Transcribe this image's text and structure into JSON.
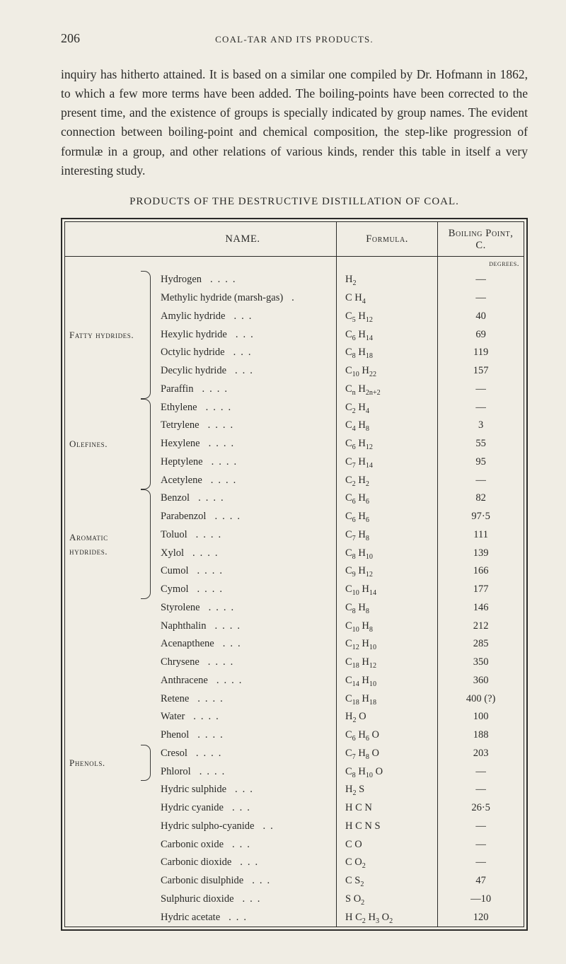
{
  "page_number": "206",
  "running_head": "COAL-TAR AND ITS PRODUCTS.",
  "paragraph": "inquiry has hitherto attained. It is based on a similar one compiled by Dr. Hofmann in 1862, to which a few more terms have been added. The boiling-points have been corrected to the present time, and the existence of groups is specially indicated by group names. The evident connection between boiling-point and chemical composition, the step-like progression of formulæ in a group, and other relations of various kinds, render this table in itself a very interesting study.",
  "table_title": "PRODUCTS OF THE DESTRUCTIVE DISTILLATION OF COAL.",
  "columns": {
    "name": "NAME.",
    "formula": "Formula.",
    "bp": "Boiling Point, C."
  },
  "degrees_label": "degrees.",
  "groups": [
    {
      "category": "Fatty hydrides.",
      "rows": [
        {
          "name": "Hydrogen",
          "dots": "....",
          "formula": "H<sub>2</sub>",
          "bp": "—"
        },
        {
          "name": "Methylic hydride (marsh-gas)",
          "dots": ".",
          "formula": "C H<sub>4</sub>",
          "bp": "—"
        },
        {
          "name": "Amylic hydride",
          "dots": "...",
          "formula": "C<sub>5</sub> H<sub>12</sub>",
          "bp": "40"
        },
        {
          "name": "Hexylic hydride",
          "dots": "...",
          "formula": "C<sub>6</sub> H<sub>14</sub>",
          "bp": "69"
        },
        {
          "name": "Octylic hydride",
          "dots": "...",
          "formula": "C<sub>8</sub> H<sub>18</sub>",
          "bp": "119"
        },
        {
          "name": "Decylic hydride",
          "dots": "...",
          "formula": "C<sub>10</sub> H<sub>22</sub>",
          "bp": "157"
        },
        {
          "name": "Paraffin",
          "dots": "....",
          "formula": "C<sub>n</sub> H<sub>2n+2</sub>",
          "bp": "—"
        }
      ]
    },
    {
      "category": "Olefines.",
      "rows": [
        {
          "name": "Ethylene",
          "dots": "....",
          "formula": "C<sub>2</sub> H<sub>4</sub>",
          "bp": "—"
        },
        {
          "name": "Tetrylene",
          "dots": "....",
          "formula": "C<sub>4</sub> H<sub>8</sub>",
          "bp": "3"
        },
        {
          "name": "Hexylene",
          "dots": "....",
          "formula": "C<sub>6</sub> H<sub>12</sub>",
          "bp": "55"
        },
        {
          "name": "Heptylene",
          "dots": "....",
          "formula": "C<sub>7</sub> H<sub>14</sub>",
          "bp": "95"
        },
        {
          "name": "Acetylene",
          "dots": "....",
          "formula": "C<sub>2</sub> H<sub>2</sub>",
          "bp": "—"
        }
      ]
    },
    {
      "category": "Aromatic hydrides.",
      "rows": [
        {
          "name": "Benzol",
          "dots": "....",
          "formula": "C<sub>6</sub> H<sub>6</sub>",
          "bp": "82"
        },
        {
          "name": "Parabenzol",
          "dots": "....",
          "formula": "C<sub>6</sub> H<sub>6</sub>",
          "bp": "97·5"
        },
        {
          "name": "Toluol",
          "dots": "....",
          "formula": "C<sub>7</sub> H<sub>8</sub>",
          "bp": "111"
        },
        {
          "name": "Xylol",
          "dots": "....",
          "formula": "C<sub>8</sub> H<sub>10</sub>",
          "bp": "139"
        },
        {
          "name": "Cumol",
          "dots": "....",
          "formula": "C<sub>9</sub> H<sub>12</sub>",
          "bp": "166"
        },
        {
          "name": "Cymol",
          "dots": "....",
          "formula": "C<sub>10</sub> H<sub>14</sub>",
          "bp": "177"
        }
      ]
    },
    {
      "category": "",
      "rows": [
        {
          "name": "Styrolene",
          "dots": "....",
          "formula": "C<sub>8</sub> H<sub>8</sub>",
          "bp": "146"
        },
        {
          "name": "Naphthalin",
          "dots": "....",
          "formula": "C<sub>10</sub> H<sub>8</sub>",
          "bp": "212"
        },
        {
          "name": "Acenapthene",
          "dots": "...",
          "formula": "C<sub>12</sub> H<sub>10</sub>",
          "bp": "285"
        },
        {
          "name": "Chrysene",
          "dots": "....",
          "formula": "C<sub>18</sub> H<sub>12</sub>",
          "bp": "350"
        },
        {
          "name": "Anthracene",
          "dots": "....",
          "formula": "C<sub>14</sub> H<sub>10</sub>",
          "bp": "360"
        },
        {
          "name": "Retene",
          "dots": "....",
          "formula": "C<sub>18</sub> H<sub>18</sub>",
          "bp": "400 (?)"
        },
        {
          "name": "Water",
          "dots": "....",
          "formula": "H<sub>2</sub> O",
          "bp": "100"
        },
        {
          "name": "Phenol",
          "dots": "....",
          "formula": "C<sub>6</sub> H<sub>6</sub> O",
          "bp": "188"
        }
      ]
    },
    {
      "category": "Phenols.",
      "rows": [
        {
          "name": "Cresol",
          "dots": "....",
          "formula": "C<sub>7</sub> H<sub>8</sub> O",
          "bp": "203"
        },
        {
          "name": "Phlorol",
          "dots": "....",
          "formula": "C<sub>8</sub> H<sub>10</sub> O",
          "bp": "—"
        }
      ]
    },
    {
      "category": "",
      "rows": [
        {
          "name": "Hydric sulphide",
          "dots": "...",
          "formula": "H<sub>2</sub> S",
          "bp": "—"
        },
        {
          "name": "Hydric cyanide",
          "dots": "...",
          "formula": "H C N",
          "bp": "26·5"
        },
        {
          "name": "Hydric sulpho-cyanide",
          "dots": "..",
          "formula": "H C N S",
          "bp": "—"
        },
        {
          "name": "Carbonic oxide",
          "dots": "...",
          "formula": "C O",
          "bp": "—"
        },
        {
          "name": "Carbonic dioxide",
          "dots": "...",
          "formula": "C O<sub>2</sub>",
          "bp": "—"
        },
        {
          "name": "Carbonic disulphide",
          "dots": "...",
          "formula": "C S<sub>2</sub>",
          "bp": "47"
        },
        {
          "name": "Sulphuric dioxide",
          "dots": "...",
          "formula": "S O<sub>2</sub>",
          "bp": "—10"
        },
        {
          "name": "Hydric acetate",
          "dots": "...",
          "formula": "H C<sub>2</sub> H<sub>3</sub> O<sub>2</sub>",
          "bp": "120"
        }
      ]
    }
  ]
}
